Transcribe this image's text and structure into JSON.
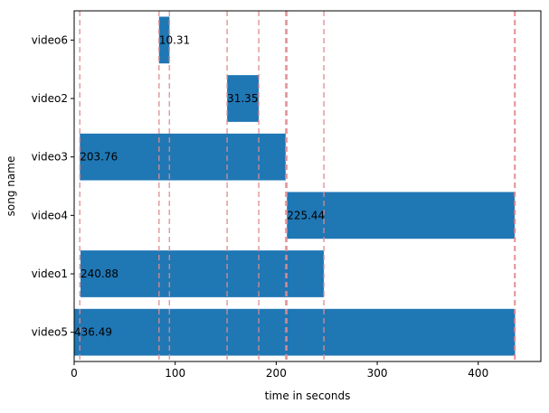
{
  "chart_data": {
    "type": "bar",
    "orientation": "horizontal",
    "title": "",
    "xlabel": "time in seconds",
    "ylabel": "song name",
    "xlim": [
      0,
      462
    ],
    "xticks": [
      0,
      100,
      200,
      300,
      400
    ],
    "categories": [
      "video5",
      "video1",
      "video4",
      "video3",
      "video2",
      "video6"
    ],
    "bars": [
      {
        "name": "video5",
        "start": 0,
        "duration": 436.49,
        "label": "436.49"
      },
      {
        "name": "video1",
        "start": 6.3,
        "duration": 240.88,
        "label": "240.88"
      },
      {
        "name": "video4",
        "start": 210.6,
        "duration": 225.44,
        "label": "225.44"
      },
      {
        "name": "video3",
        "start": 5.6,
        "duration": 203.76,
        "label": "203.76"
      },
      {
        "name": "video2",
        "start": 151.4,
        "duration": 31.35,
        "label": "31.35"
      },
      {
        "name": "video6",
        "start": 84.0,
        "duration": 10.31,
        "label": "10.31"
      }
    ],
    "reference_lines": [
      5.6,
      84.0,
      94.3,
      151.4,
      182.75,
      209.4,
      210.6,
      247.2,
      436.0,
      436.5
    ],
    "grid": false,
    "colors": {
      "bar": "#1f77b4",
      "reference_line": "#e08a8f"
    }
  }
}
